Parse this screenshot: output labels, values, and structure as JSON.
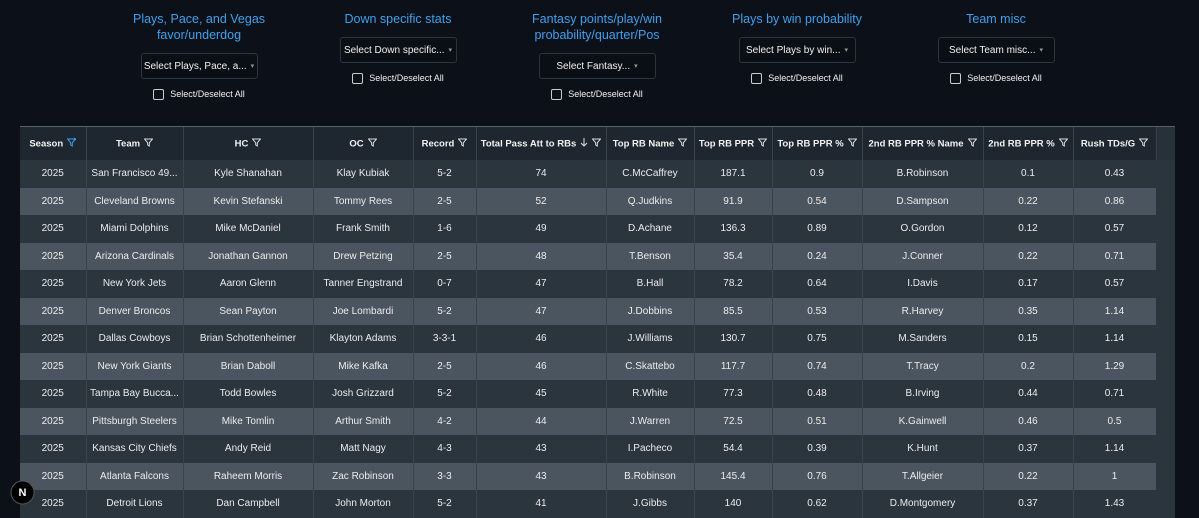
{
  "filters": [
    {
      "title": "Plays, Pace, and Vegas favor/underdog",
      "select": "Select Plays, Pace, a...",
      "checkbox": "Select/Deselect All"
    },
    {
      "title": "Down specific stats",
      "select": "Select Down specific...",
      "checkbox": "Select/Deselect All"
    },
    {
      "title": "Fantasy points/play/win probability/quarter/Pos",
      "select": "Select Fantasy...",
      "checkbox": "Select/Deselect All"
    },
    {
      "title": "Plays by win probability",
      "select": "Select Plays by win...",
      "checkbox": "Select/Deselect All"
    },
    {
      "title": "Team misc",
      "select": "Select Team misc...",
      "checkbox": "Select/Deselect All"
    }
  ],
  "table": {
    "columns": [
      "Season",
      "Team",
      "HC",
      "OC",
      "Record",
      "Total Pass Att to RBs",
      "Top RB Name",
      "Top RB PPR",
      "Top RB PPR %",
      "2nd RB PPR % Name",
      "2nd RB PPR %",
      "Rush TDs/G"
    ],
    "rows": [
      [
        "2025",
        "San Francisco 49...",
        "Kyle Shanahan",
        "Klay Kubiak",
        "5-2",
        "74",
        "C.McCaffrey",
        "187.1",
        "0.9",
        "B.Robinson",
        "0.1",
        "0.43"
      ],
      [
        "2025",
        "Cleveland Browns",
        "Kevin Stefanski",
        "Tommy Rees",
        "2-5",
        "52",
        "Q.Judkins",
        "91.9",
        "0.54",
        "D.Sampson",
        "0.22",
        "0.86"
      ],
      [
        "2025",
        "Miami Dolphins",
        "Mike McDaniel",
        "Frank Smith",
        "1-6",
        "49",
        "D.Achane",
        "136.3",
        "0.89",
        "O.Gordon",
        "0.12",
        "0.57"
      ],
      [
        "2025",
        "Arizona Cardinals",
        "Jonathan Gannon",
        "Drew Petzing",
        "2-5",
        "48",
        "T.Benson",
        "35.4",
        "0.24",
        "J.Conner",
        "0.22",
        "0.71"
      ],
      [
        "2025",
        "New York Jets",
        "Aaron Glenn",
        "Tanner Engstrand",
        "0-7",
        "47",
        "B.Hall",
        "78.2",
        "0.64",
        "I.Davis",
        "0.17",
        "0.57"
      ],
      [
        "2025",
        "Denver Broncos",
        "Sean Payton",
        "Joe Lombardi",
        "5-2",
        "47",
        "J.Dobbins",
        "85.5",
        "0.53",
        "R.Harvey",
        "0.35",
        "1.14"
      ],
      [
        "2025",
        "Dallas Cowboys",
        "Brian Schottenheimer",
        "Klayton Adams",
        "3-3-1",
        "46",
        "J.Williams",
        "130.7",
        "0.75",
        "M.Sanders",
        "0.15",
        "1.14"
      ],
      [
        "2025",
        "New York Giants",
        "Brian Daboll",
        "Mike Kafka",
        "2-5",
        "46",
        "C.Skattebo",
        "117.7",
        "0.74",
        "T.Tracy",
        "0.2",
        "1.29"
      ],
      [
        "2025",
        "Tampa Bay Bucca...",
        "Todd Bowles",
        "Josh Grizzard",
        "5-2",
        "45",
        "R.White",
        "77.3",
        "0.48",
        "B.Irving",
        "0.44",
        "0.71"
      ],
      [
        "2025",
        "Pittsburgh Steelers",
        "Mike Tomlin",
        "Arthur Smith",
        "4-2",
        "44",
        "J.Warren",
        "72.5",
        "0.51",
        "K.Gainwell",
        "0.46",
        "0.5"
      ],
      [
        "2025",
        "Kansas City Chiefs",
        "Andy Reid",
        "Matt Nagy",
        "4-3",
        "43",
        "I.Pacheco",
        "54.4",
        "0.39",
        "K.Hunt",
        "0.37",
        "1.14"
      ],
      [
        "2025",
        "Atlanta Falcons",
        "Raheem Morris",
        "Zac Robinson",
        "3-3",
        "43",
        "B.Robinson",
        "145.4",
        "0.76",
        "T.Allgeier",
        "0.22",
        "1"
      ],
      [
        "2025",
        "Detroit Lions",
        "Dan Campbell",
        "John Morton",
        "5-2",
        "41",
        "J.Gibbs",
        "140",
        "0.62",
        "D.Montgomery",
        "0.37",
        "1.43"
      ]
    ]
  },
  "dev_badge": "N"
}
